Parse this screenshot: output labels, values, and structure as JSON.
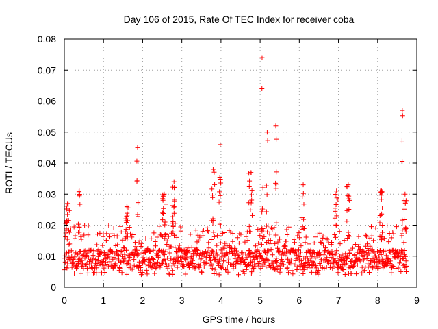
{
  "chart_data": {
    "type": "scatter",
    "title": "Day 106 of 2015, Rate Of TEC Index for receiver coba",
    "xlabel": "GPS time / hours",
    "ylabel": "ROTI / TECUs",
    "xlim": [
      0,
      9
    ],
    "ylim": [
      0,
      0.08
    ],
    "x_ticks": [
      0,
      1,
      2,
      3,
      4,
      5,
      6,
      7,
      8,
      9
    ],
    "x_tick_labels": [
      "0",
      "1",
      "2",
      "3",
      "4",
      "5",
      "6",
      "7",
      "8",
      "9"
    ],
    "y_ticks": [
      0,
      0.01,
      0.02,
      0.03,
      0.04,
      0.05,
      0.06,
      0.07,
      0.08
    ],
    "y_tick_labels": [
      "0",
      "0.01",
      "0.02",
      "0.03",
      "0.04",
      "0.05",
      "0.06",
      "0.07",
      "0.08"
    ],
    "grid": true,
    "marker": "+",
    "color": "#ff0000",
    "data_range": {
      "x_min": 0.0,
      "x_max": 8.75
    },
    "band": {
      "low": 0.004,
      "high": 0.02,
      "typical": 0.009
    },
    "spikes": [
      {
        "x": 0.08,
        "peak": 0.027,
        "width": 0.1
      },
      {
        "x": 0.38,
        "peak": 0.031,
        "width": 0.06
      },
      {
        "x": 1.6,
        "peak": 0.026,
        "width": 0.08
      },
      {
        "x": 1.87,
        "peak": 0.045,
        "width": 0.04
      },
      {
        "x": 2.55,
        "peak": 0.03,
        "width": 0.1
      },
      {
        "x": 2.8,
        "peak": 0.034,
        "width": 0.1
      },
      {
        "x": 3.8,
        "peak": 0.038,
        "width": 0.08
      },
      {
        "x": 3.98,
        "peak": 0.046,
        "width": 0.06
      },
      {
        "x": 4.75,
        "peak": 0.037,
        "width": 0.1
      },
      {
        "x": 5.05,
        "peak": 0.074,
        "width": 0.05
      },
      {
        "x": 5.18,
        "peak": 0.05,
        "width": 0.05
      },
      {
        "x": 5.4,
        "peak": 0.052,
        "width": 0.03
      },
      {
        "x": 6.1,
        "peak": 0.033,
        "width": 0.06
      },
      {
        "x": 6.95,
        "peak": 0.031,
        "width": 0.08
      },
      {
        "x": 7.25,
        "peak": 0.033,
        "width": 0.08
      },
      {
        "x": 8.1,
        "peak": 0.031,
        "width": 0.1
      },
      {
        "x": 8.63,
        "peak": 0.057,
        "width": 0.02
      },
      {
        "x": 8.7,
        "peak": 0.03,
        "width": 0.06
      }
    ]
  }
}
